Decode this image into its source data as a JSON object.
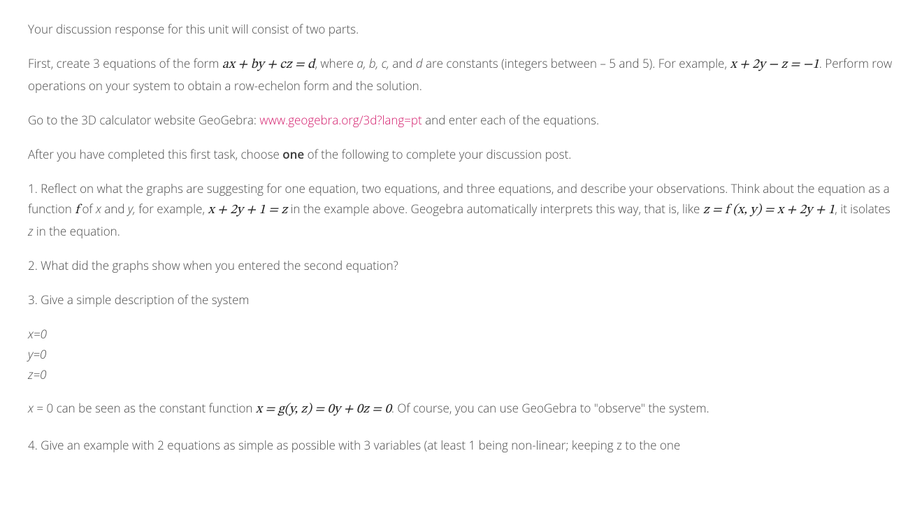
{
  "colors": {
    "text": "#4a4a4a",
    "mathText": "#222222",
    "link": "#d31b6b",
    "background": "#ffffff"
  },
  "typography": {
    "bodyFontSize": 17,
    "mathFontSize": 19,
    "lineHeight": 1.7,
    "fontFamily": "Open Sans, Segoe UI, Arial, sans-serif",
    "mathFontFamily": "Cambria Math, STIX Two Math, Times New Roman, serif"
  },
  "p1": "Your discussion response for this unit will consist of two parts.",
  "p2": {
    "pre": "First, create 3 equations of the form ",
    "eq1": "ax + by + cz = d",
    "mid1": ", where ",
    "a": "a, ",
    "b": "b, ",
    "c": "c, ",
    "and": "and ",
    "d": "d ",
    "mid2": "are constants (integers between – 5 and 5). For example, ",
    "eq2": "x + 2y − z = −1",
    "post": ". Perform row operations on your system to obtain a row-echelon form and the solution."
  },
  "p3": {
    "pre": "Go to the 3D calculator website GeoGebra: ",
    "linkText": "www.geogebra.org/3d?lang=pt",
    "post": " and enter each of the equations."
  },
  "p4": {
    "pre": "After you have completed this first task, choose ",
    "bold": "one",
    "post": " of the following to complete your discussion post."
  },
  "p5": {
    "pre": "1. Reflect on what the graphs are suggesting for one equation, two equations, and three equations, and describe your observations. Think about the equation as a function ",
    "f": "f",
    "mid1": " of ",
    "x": "x ",
    "and1": "and ",
    "y": "y, ",
    "mid2": "for example, ",
    "eq1": "x + 2y + 1 = z",
    "mid3": " in the example above. Geogebra automatically interprets this way, that is, like ",
    "eq2": "z = f (x, y) = x + 2y + 1",
    "mid4": ", it isolates ",
    "zvar": "z ",
    "post": "in the equation."
  },
  "p6": "2. What did the graphs show when you entered the second equation?",
  "p7": "3. Give a simple description of the system",
  "sys": {
    "l1": "x=0",
    "l2": "y=0",
    "l3": "z=0"
  },
  "p8": {
    "pre": "x ",
    "mid0": "= 0 can be seen as the constant function ",
    "eq": "x = g(y, z) = 0y + 0z = 0",
    "post": ". Of course, you can use GeoGebra to \"observe\" the system."
  },
  "p9": "4. Give an example with 2 equations as simple as possible with 3 variables (at least 1 being non-linear; keeping z to the one"
}
